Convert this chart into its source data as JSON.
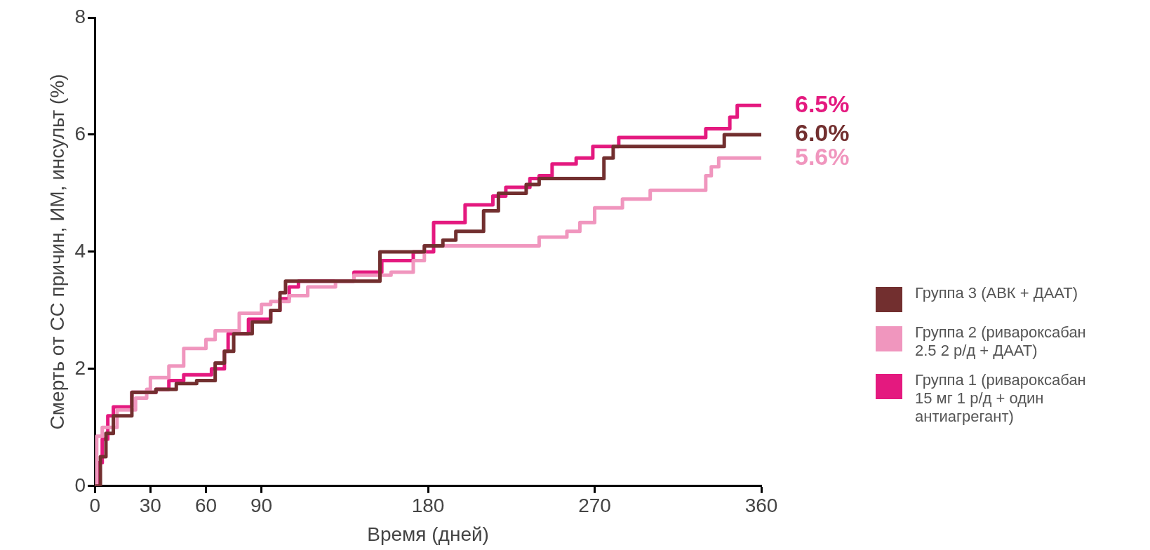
{
  "chart_data": {
    "type": "step",
    "xlabel": "Время (дней)",
    "ylabel": "Смерть от СС причин, ИМ, инсульт (%)",
    "xlim": [
      0,
      360
    ],
    "xticks": [
      0,
      30,
      60,
      90,
      180,
      270,
      360
    ],
    "ylim": [
      0,
      8
    ],
    "yticks": [
      0,
      2,
      4,
      6,
      8
    ],
    "grid": false,
    "legend": "right",
    "marker": "none",
    "line_style": "solid",
    "series": [
      {
        "name": "Группа 3 (АВК + ДААТ)",
        "color": "#722f2f",
        "x": [
          0,
          3,
          6,
          10,
          20,
          33,
          44,
          55,
          65,
          70,
          75,
          85,
          95,
          100,
          103,
          130,
          154,
          178,
          188,
          195,
          210,
          218,
          233,
          240,
          275,
          280,
          340,
          360
        ],
        "values": [
          0,
          0.5,
          0.9,
          1.2,
          1.6,
          1.65,
          1.75,
          1.8,
          2.1,
          2.3,
          2.6,
          2.8,
          3.0,
          3.3,
          3.5,
          3.5,
          4.0,
          4.1,
          4.2,
          4.35,
          4.7,
          5.0,
          5.15,
          5.25,
          5.6,
          5.8,
          6.0,
          6.0
        ],
        "value_labels": [
          null,
          null,
          null,
          null,
          null,
          null,
          null,
          null,
          null,
          null,
          null,
          null,
          null,
          null,
          null,
          null,
          null,
          null,
          null,
          null,
          null,
          null,
          null,
          null,
          null,
          null,
          null,
          "6.0%"
        ]
      },
      {
        "name": "Группа 2 (ривароксабан 2.5 2 р/д + ДААТ)",
        "color": "#f096be",
        "x": [
          0,
          1,
          4,
          12,
          22,
          28,
          30,
          40,
          48,
          60,
          65,
          78,
          90,
          95,
          105,
          115,
          130,
          140,
          160,
          172,
          178,
          240,
          255,
          262,
          270,
          285,
          300,
          330,
          333,
          337,
          360
        ],
        "values": [
          0,
          0.85,
          1.0,
          1.3,
          1.5,
          1.65,
          1.85,
          2.05,
          2.35,
          2.5,
          2.65,
          2.95,
          3.1,
          3.15,
          3.25,
          3.4,
          3.5,
          3.6,
          3.65,
          3.85,
          4.1,
          4.25,
          4.35,
          4.5,
          4.75,
          4.9,
          5.05,
          5.3,
          5.45,
          5.6,
          5.6
        ],
        "value_labels": [
          null,
          null,
          null,
          null,
          null,
          null,
          null,
          null,
          null,
          null,
          null,
          null,
          null,
          null,
          null,
          null,
          null,
          null,
          null,
          null,
          null,
          null,
          null,
          null,
          null,
          null,
          null,
          null,
          null,
          null,
          "5.6%"
        ]
      },
      {
        "name": "Группа 1 (ривароксабан 15 мг 1 р/д + один антиагрегант)",
        "color": "#e4197f",
        "x": [
          0,
          2,
          4,
          7,
          10,
          20,
          33,
          40,
          48,
          63,
          70,
          72,
          83,
          95,
          100,
          105,
          110,
          140,
          155,
          172,
          183,
          200,
          215,
          222,
          235,
          240,
          247,
          260,
          269,
          283,
          330,
          343,
          347,
          360
        ],
        "values": [
          0,
          0.4,
          0.8,
          1.2,
          1.35,
          1.6,
          1.65,
          1.8,
          1.9,
          2.0,
          2.3,
          2.6,
          2.85,
          3.0,
          3.2,
          3.4,
          3.5,
          3.65,
          3.85,
          4.0,
          4.5,
          4.8,
          4.95,
          5.1,
          5.25,
          5.3,
          5.5,
          5.6,
          5.8,
          5.95,
          6.1,
          6.3,
          6.5,
          6.5
        ],
        "value_labels": [
          null,
          null,
          null,
          null,
          null,
          null,
          null,
          null,
          null,
          null,
          null,
          null,
          null,
          null,
          null,
          null,
          null,
          null,
          null,
          null,
          null,
          null,
          null,
          null,
          null,
          null,
          null,
          null,
          null,
          null,
          null,
          null,
          null,
          "6.5%"
        ]
      }
    ]
  }
}
